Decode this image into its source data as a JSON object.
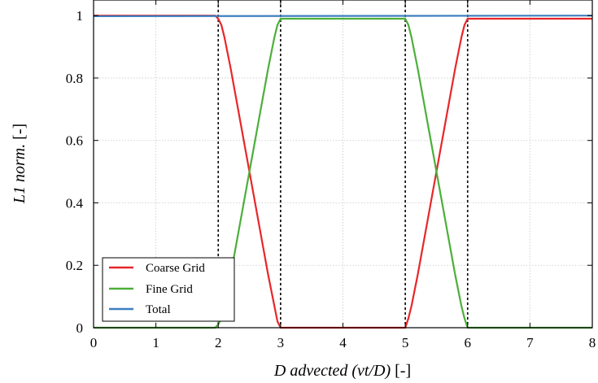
{
  "chart_data": {
    "type": "line",
    "title": "",
    "xlabel": {
      "italic": "D advected (vt/D)",
      "unit": " [-]"
    },
    "ylabel": {
      "italic": "L1 norm.",
      "unit": " [-]"
    },
    "xlim": [
      0,
      8
    ],
    "ylim": [
      0,
      1.05
    ],
    "xticks": [
      0,
      1,
      2,
      3,
      4,
      5,
      6,
      7,
      8
    ],
    "yticks": [
      0,
      0.2,
      0.4,
      0.6,
      0.8,
      1
    ],
    "ytick_labels": [
      "0",
      "0.2",
      "0.4",
      "0.6",
      "0.8",
      "1"
    ],
    "grid": true,
    "legend_position": "bottom-left",
    "vertical_dashed_lines": [
      2,
      3,
      5,
      6
    ],
    "series": [
      {
        "name": "Coarse Grid",
        "color": "#e8262a",
        "x": [
          0,
          1.95,
          2.0,
          2.05,
          2.1,
          2.2,
          2.3,
          2.4,
          2.5,
          2.6,
          2.7,
          2.8,
          2.9,
          2.95,
          3.0,
          5.0,
          5.05,
          5.1,
          5.2,
          5.3,
          5.4,
          5.5,
          5.6,
          5.7,
          5.8,
          5.9,
          5.95,
          6.0,
          8.0
        ],
        "y": [
          1,
          1,
          0.99,
          0.97,
          0.93,
          0.83,
          0.72,
          0.61,
          0.5,
          0.39,
          0.28,
          0.17,
          0.07,
          0.02,
          0,
          0,
          0.03,
          0.07,
          0.17,
          0.28,
          0.39,
          0.5,
          0.61,
          0.72,
          0.83,
          0.93,
          0.97,
          0.99,
          0.99
        ]
      },
      {
        "name": "Fine Grid",
        "color": "#4caf3a",
        "x": [
          0,
          1.95,
          2.0,
          2.05,
          2.1,
          2.2,
          2.3,
          2.4,
          2.5,
          2.6,
          2.7,
          2.8,
          2.9,
          2.95,
          3.0,
          5.0,
          5.05,
          5.1,
          5.2,
          5.3,
          5.4,
          5.5,
          5.6,
          5.7,
          5.8,
          5.9,
          5.95,
          6.0,
          8.0
        ],
        "y": [
          0,
          0,
          0.01,
          0.03,
          0.07,
          0.17,
          0.28,
          0.39,
          0.5,
          0.61,
          0.72,
          0.83,
          0.93,
          0.97,
          0.99,
          0.99,
          0.97,
          0.93,
          0.83,
          0.72,
          0.61,
          0.5,
          0.39,
          0.28,
          0.17,
          0.07,
          0.03,
          0,
          0
        ]
      },
      {
        "name": "Total",
        "color": "#3d7fbf",
        "x": [
          0,
          8
        ],
        "y": [
          0.998,
          1.0
        ]
      }
    ]
  }
}
